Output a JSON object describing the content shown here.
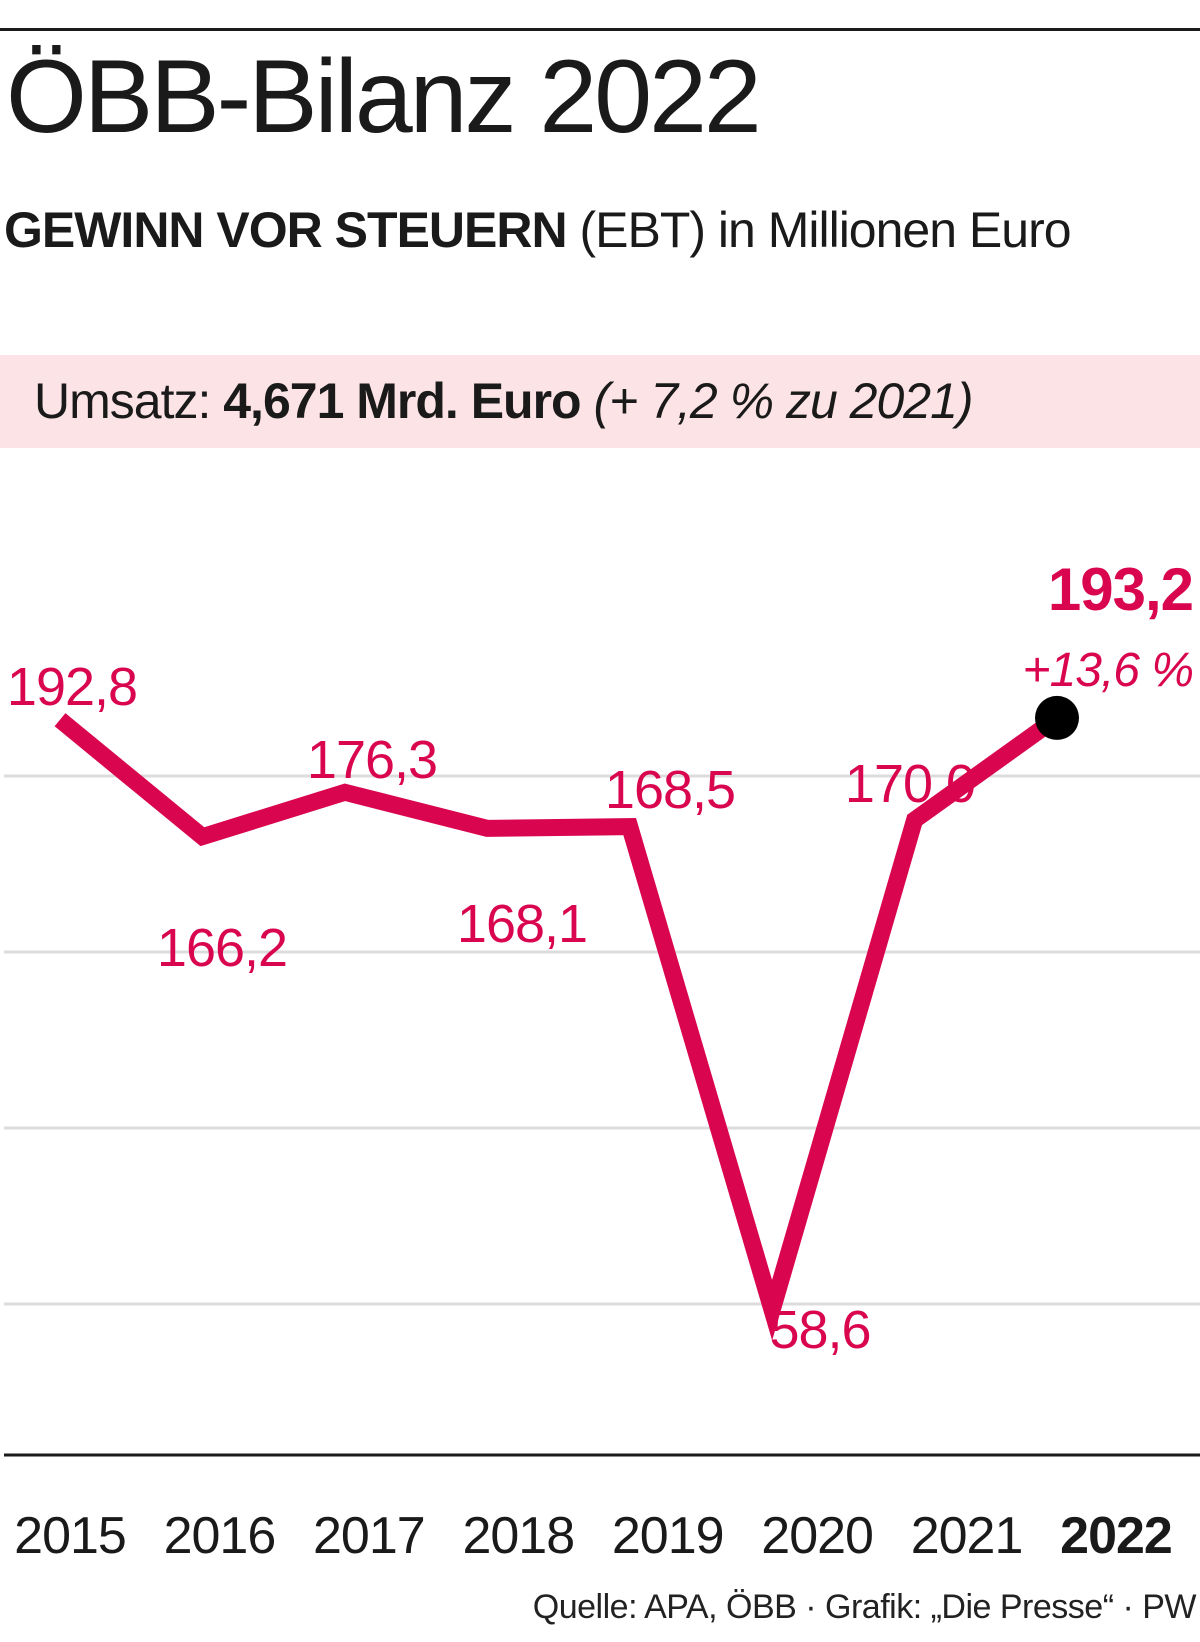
{
  "header": {
    "title": "ÖBB-Bilanz 2022",
    "subtitle_strong": "GEWINN VOR STEUERN",
    "subtitle_rest": " (EBT) in Millionen Euro"
  },
  "revenue": {
    "label": "Umsatz: ",
    "value": "4,671 Mrd. Euro",
    "note": " (+ 7,2 % zu 2021)"
  },
  "chart_data": {
    "type": "line",
    "title": "ÖBB-Bilanz 2022",
    "subtitle": "GEWINN VOR STEUERN (EBT) in Millionen Euro",
    "x": [
      "2015",
      "2016",
      "2017",
      "2018",
      "2019",
      "2020",
      "2021",
      "2022"
    ],
    "series": [
      {
        "values": [
          192.8,
          166.2,
          176.3,
          168.1,
          168.5,
          58.6,
          170.0,
          193.2
        ],
        "labels": [
          "192,8",
          "166,2",
          "176,3",
          "168,1",
          "168,5",
          "58,6",
          "170,0",
          "193,2"
        ]
      }
    ],
    "highlight": {
      "x": "2022",
      "value_label": "193,2",
      "change_label": "+13,6 %"
    },
    "ylim": [
      40,
      200
    ],
    "grid": true,
    "legend": false,
    "colors": {
      "line": "#d9064f",
      "grid": "#dcdcdc",
      "marker": "#000000",
      "axis": "#1a1a1a"
    }
  },
  "footer": {
    "source": "Quelle: APA, ÖBB · Grafik: „Die Presse“ · PW"
  }
}
